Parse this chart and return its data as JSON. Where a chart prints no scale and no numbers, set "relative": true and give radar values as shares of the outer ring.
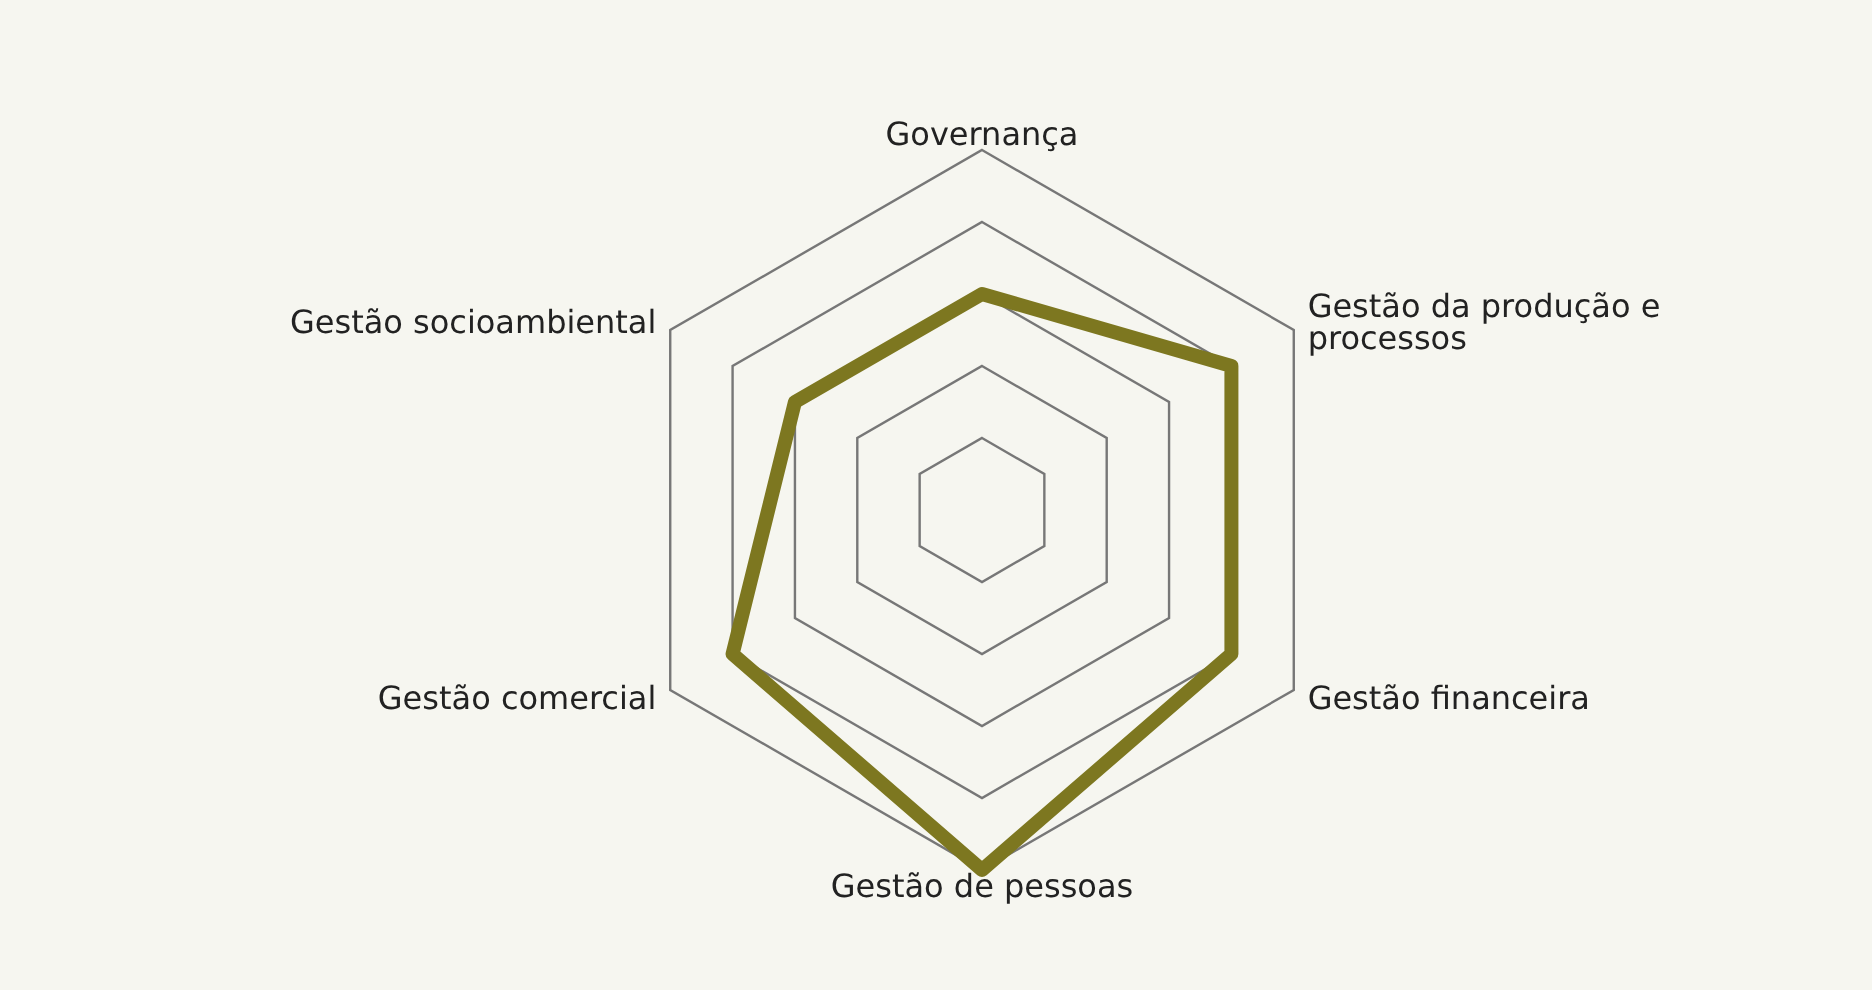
{
  "chart_data": {
    "type": "radar",
    "relative": true,
    "grid": true,
    "categories": [
      "Governança",
      "Gestão da produção e processos",
      "Gestão financeira",
      "Gestão de pessoas",
      "Gestão comercial",
      "Gestão socioambiental"
    ],
    "series": [
      {
        "color": "#7d7720",
        "values": [
          0.6,
          0.8,
          0.8,
          1,
          0.8,
          0.6
        ]
      }
    ]
  }
}
